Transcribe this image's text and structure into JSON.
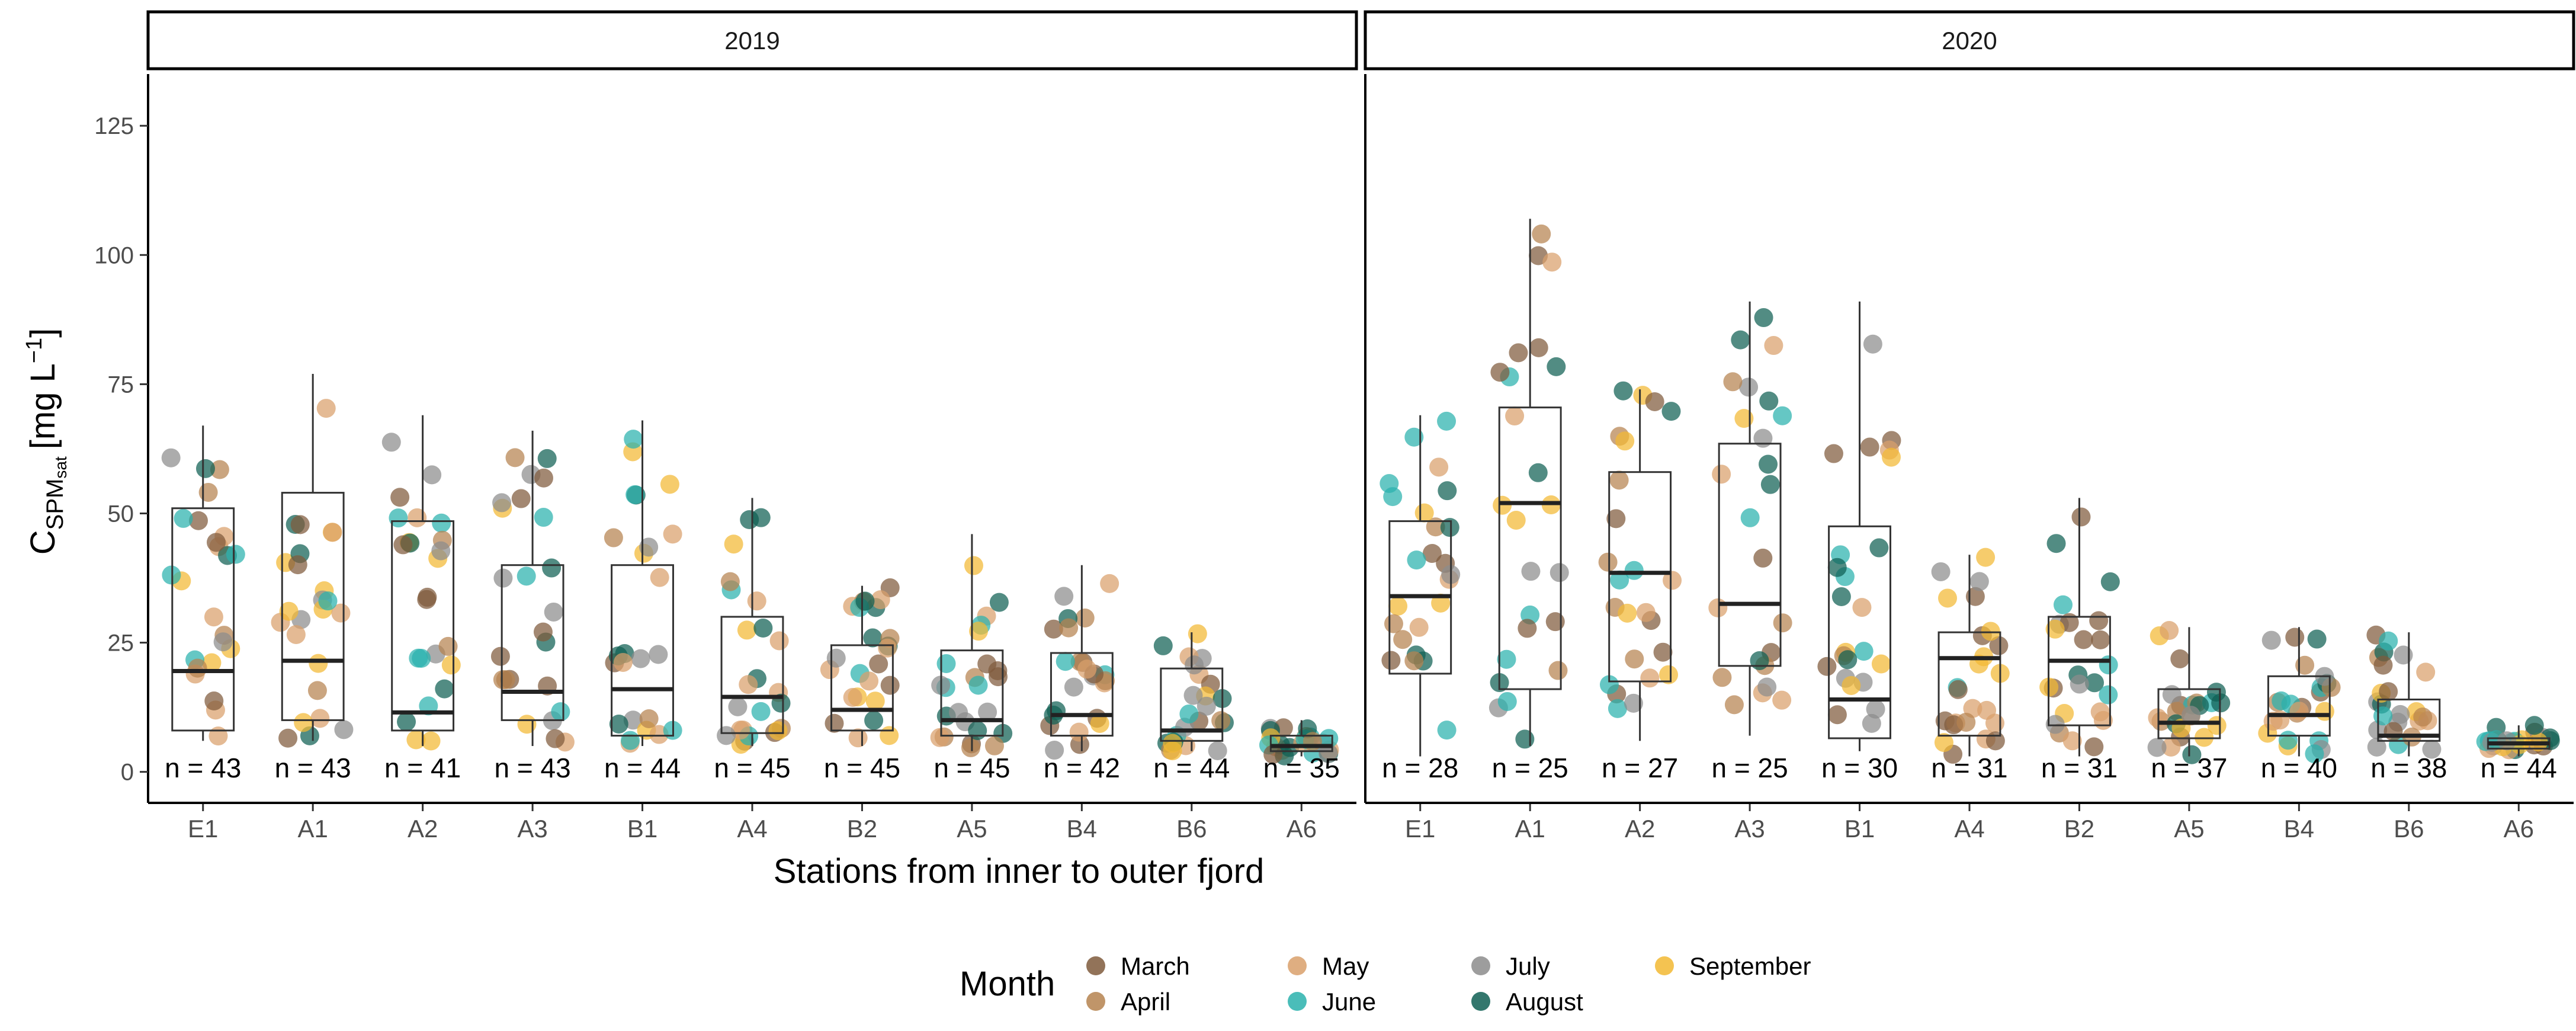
{
  "chart_data": {
    "type": "boxplot",
    "xlabel": "Stations from inner to outer fjord",
    "ylabel_main": "C",
    "ylabel_sub": "SPM",
    "ylabel_subsub": "sat",
    "ylabel_unit": "[mg L",
    "ylabel_unit_exp": "−1",
    "ylabel_unit_end": "]",
    "ylim": [
      -6,
      135
    ],
    "yticks": [
      0,
      25,
      50,
      75,
      100,
      125
    ],
    "legend": {
      "title": "Month",
      "position": "bottom",
      "entries": [
        {
          "label": "March",
          "color": "#7f5a3c"
        },
        {
          "label": "April",
          "color": "#b5824f"
        },
        {
          "label": "May",
          "color": "#d9a06b"
        },
        {
          "label": "June",
          "color": "#2ab1ad"
        },
        {
          "label": "July",
          "color": "#8c8c8c"
        },
        {
          "label": "August",
          "color": "#0f5f53"
        },
        {
          "label": "September",
          "color": "#f2b933"
        }
      ]
    },
    "panels": [
      {
        "title": "2019",
        "stations": [
          "E1",
          "A1",
          "A2",
          "A3",
          "B1",
          "A4",
          "B2",
          "A5",
          "B4",
          "B6",
          "A6"
        ],
        "n_labels": [
          "n = 43",
          "n = 43",
          "n = 41",
          "n = 43",
          "n = 44",
          "n = 45",
          "n = 45",
          "n = 45",
          "n = 42",
          "n = 44",
          "n = 35"
        ],
        "boxes": [
          {
            "min": 6,
            "q1": 8,
            "median": 19.5,
            "q3": 51,
            "max": 67
          },
          {
            "min": 6,
            "q1": 10,
            "median": 21.5,
            "q3": 54,
            "max": 77
          },
          {
            "min": 5,
            "q1": 8,
            "median": 11.5,
            "q3": 48.5,
            "max": 69
          },
          {
            "min": 5,
            "q1": 10,
            "median": 15.5,
            "q3": 40,
            "max": 66
          },
          {
            "min": 5,
            "q1": 7,
            "median": 16,
            "q3": 40,
            "max": 68
          },
          {
            "min": 5,
            "q1": 7.5,
            "median": 14.5,
            "q3": 30,
            "max": 53
          },
          {
            "min": 5,
            "q1": 8,
            "median": 12,
            "q3": 24.5,
            "max": 36
          },
          {
            "min": 4,
            "q1": 7,
            "median": 10,
            "q3": 23.5,
            "max": 46
          },
          {
            "min": 4,
            "q1": 7,
            "median": 11,
            "q3": 23,
            "max": 40
          },
          {
            "min": 4,
            "q1": 6,
            "median": 8,
            "q3": 20,
            "max": 27
          },
          {
            "min": 3,
            "q1": 4,
            "median": 5,
            "q3": 7,
            "max": 10
          }
        ]
      },
      {
        "title": "2020",
        "stations": [
          "E1",
          "A1",
          "A2",
          "A3",
          "B1",
          "A4",
          "B2",
          "A5",
          "B4",
          "B6",
          "A6"
        ],
        "n_labels": [
          "n = 28",
          "n = 25",
          "n = 27",
          "n = 25",
          "n = 30",
          "n = 31",
          "n = 31",
          "n = 37",
          "n = 40",
          "n = 38",
          "n = 44"
        ],
        "boxes": [
          {
            "min": 3,
            "q1": 19,
            "median": 34,
            "q3": 48.5,
            "max": 69
          },
          {
            "min": 5,
            "q1": 16,
            "median": 52,
            "q3": 70.5,
            "max": 107
          },
          {
            "min": 6,
            "q1": 17.5,
            "median": 38.5,
            "q3": 58,
            "max": 74
          },
          {
            "min": 7,
            "q1": 20.5,
            "median": 32.5,
            "q3": 63.5,
            "max": 91
          },
          {
            "min": 4,
            "q1": 6.5,
            "median": 14,
            "q3": 47.5,
            "max": 91
          },
          {
            "min": 3,
            "q1": 7,
            "median": 22,
            "q3": 27,
            "max": 42
          },
          {
            "min": 3,
            "q1": 9,
            "median": 21.5,
            "q3": 30,
            "max": 53
          },
          {
            "min": 3,
            "q1": 6.5,
            "median": 9.5,
            "q3": 16,
            "max": 28
          },
          {
            "min": 3,
            "q1": 7,
            "median": 11,
            "q3": 18.5,
            "max": 28
          },
          {
            "min": 3,
            "q1": 6,
            "median": 7,
            "q3": 14,
            "max": 27
          },
          {
            "min": 3,
            "q1": 4.5,
            "median": 5.5,
            "q3": 6.5,
            "max": 9
          }
        ]
      }
    ]
  }
}
